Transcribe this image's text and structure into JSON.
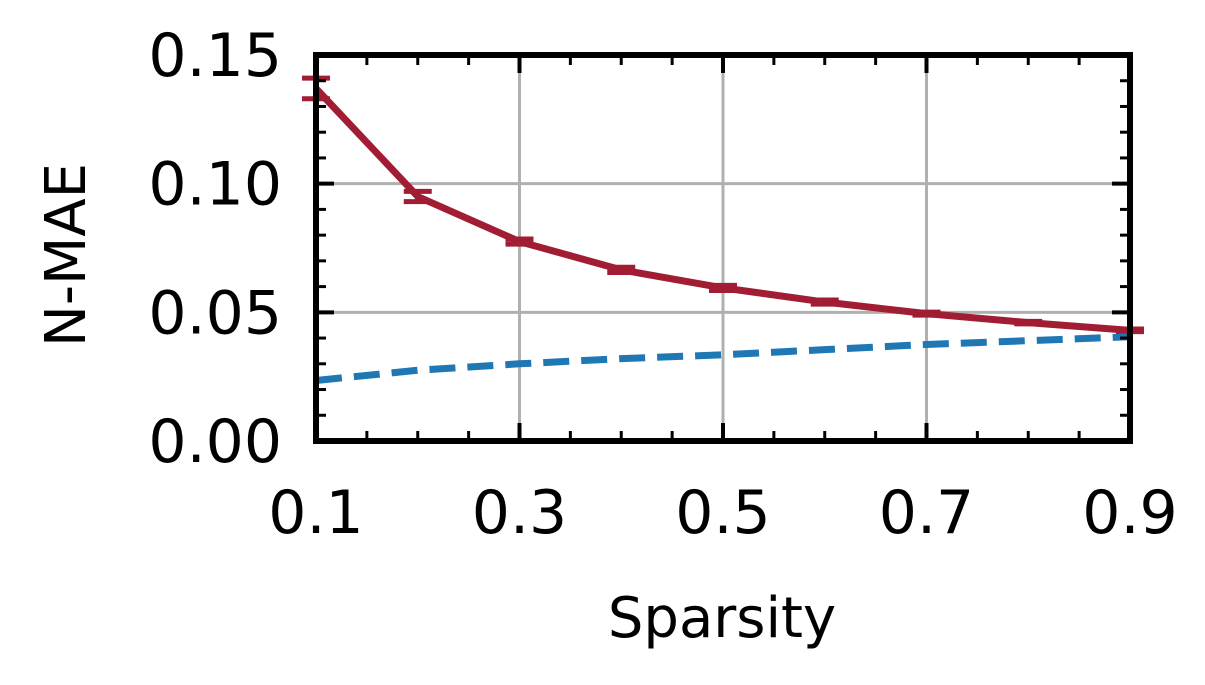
{
  "chart_data": {
    "type": "line",
    "title": "",
    "xlabel": "Sparsity",
    "ylabel": "N-MAE",
    "xlim": [
      0.1,
      0.9
    ],
    "ylim": [
      0.0,
      0.15
    ],
    "x_ticks": [
      "0.1",
      "0.3",
      "0.5",
      "0.7",
      "0.9"
    ],
    "y_ticks": [
      "0.00",
      "0.05",
      "0.10",
      "0.15"
    ],
    "grid": true,
    "x": [
      0.1,
      0.2,
      0.3,
      0.4,
      0.5,
      0.6,
      0.7,
      0.8,
      0.9
    ],
    "series": [
      {
        "color": "#a11d33",
        "style": "solid",
        "values": [
          0.137,
          0.095,
          0.0775,
          0.0665,
          0.0595,
          0.054,
          0.0495,
          0.046,
          0.043
        ],
        "error": [
          0.004,
          0.002,
          0.001,
          0.001,
          0.001,
          0.0008,
          0.0006,
          0.0005,
          0.0005
        ]
      },
      {
        "color": "#1f77b4",
        "style": "dashed",
        "values": [
          0.0235,
          0.0275,
          0.03,
          0.032,
          0.0335,
          0.0355,
          0.0375,
          0.039,
          0.0405
        ]
      }
    ]
  }
}
